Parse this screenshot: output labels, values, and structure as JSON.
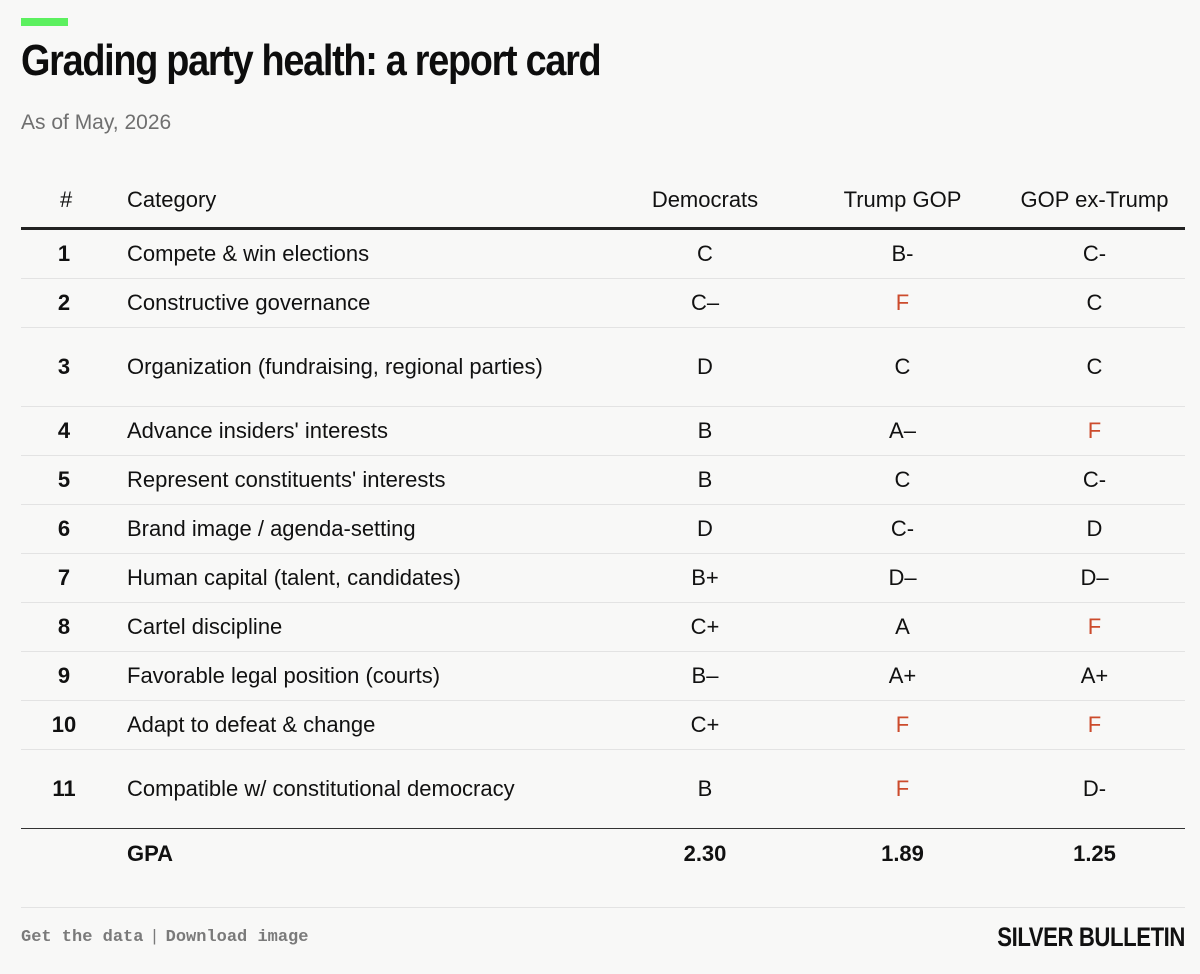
{
  "header": {
    "title": "Grading party health: a report card",
    "subtitle": "As of May, 2026",
    "accent_color": "#5cf05f"
  },
  "chart_data": {
    "type": "table",
    "title": "Grading party health: a report card",
    "subtitle": "As of May, 2026",
    "columns": [
      "#",
      "Category",
      "Democrats",
      "Trump GOP",
      "GOP ex-Trump"
    ],
    "rows": [
      {
        "num": "1",
        "category": "Compete & win elections",
        "grades": [
          "C",
          "B-",
          "C-"
        ]
      },
      {
        "num": "2",
        "category": "Constructive governance",
        "grades": [
          "C–",
          "F",
          "C"
        ]
      },
      {
        "num": "3",
        "category": "Organization (fundraising, regional parties)",
        "grades": [
          "D",
          "C",
          "C"
        ]
      },
      {
        "num": "4",
        "category": "Advance insiders' interests",
        "grades": [
          "B",
          "A–",
          "F"
        ]
      },
      {
        "num": "5",
        "category": "Represent constituents' interests",
        "grades": [
          "B",
          "C",
          "C-"
        ]
      },
      {
        "num": "6",
        "category": "Brand image / agenda-setting",
        "grades": [
          "D",
          "C-",
          "D"
        ]
      },
      {
        "num": "7",
        "category": "Human capital (talent, candidates)",
        "grades": [
          "B+",
          "D–",
          "D–"
        ]
      },
      {
        "num": "8",
        "category": "Cartel discipline",
        "grades": [
          "C+",
          "A",
          "F"
        ]
      },
      {
        "num": "9",
        "category": "Favorable legal position (courts)",
        "grades": [
          "B–",
          "A+",
          "A+"
        ]
      },
      {
        "num": "10",
        "category": "Adapt to defeat & change",
        "grades": [
          "C+",
          "F",
          "F"
        ]
      },
      {
        "num": "11",
        "category": "Compatible w/ constitutional democracy",
        "grades": [
          "B",
          "F",
          "D-"
        ]
      }
    ],
    "summary": {
      "label": "GPA",
      "values": [
        "2.30",
        "1.89",
        "1.25"
      ]
    },
    "fail_color": "#cc4b2c"
  },
  "footer": {
    "get_data": "Get the data",
    "separator": "|",
    "download": "Download image",
    "brand": "SILVER BULLETIN"
  }
}
